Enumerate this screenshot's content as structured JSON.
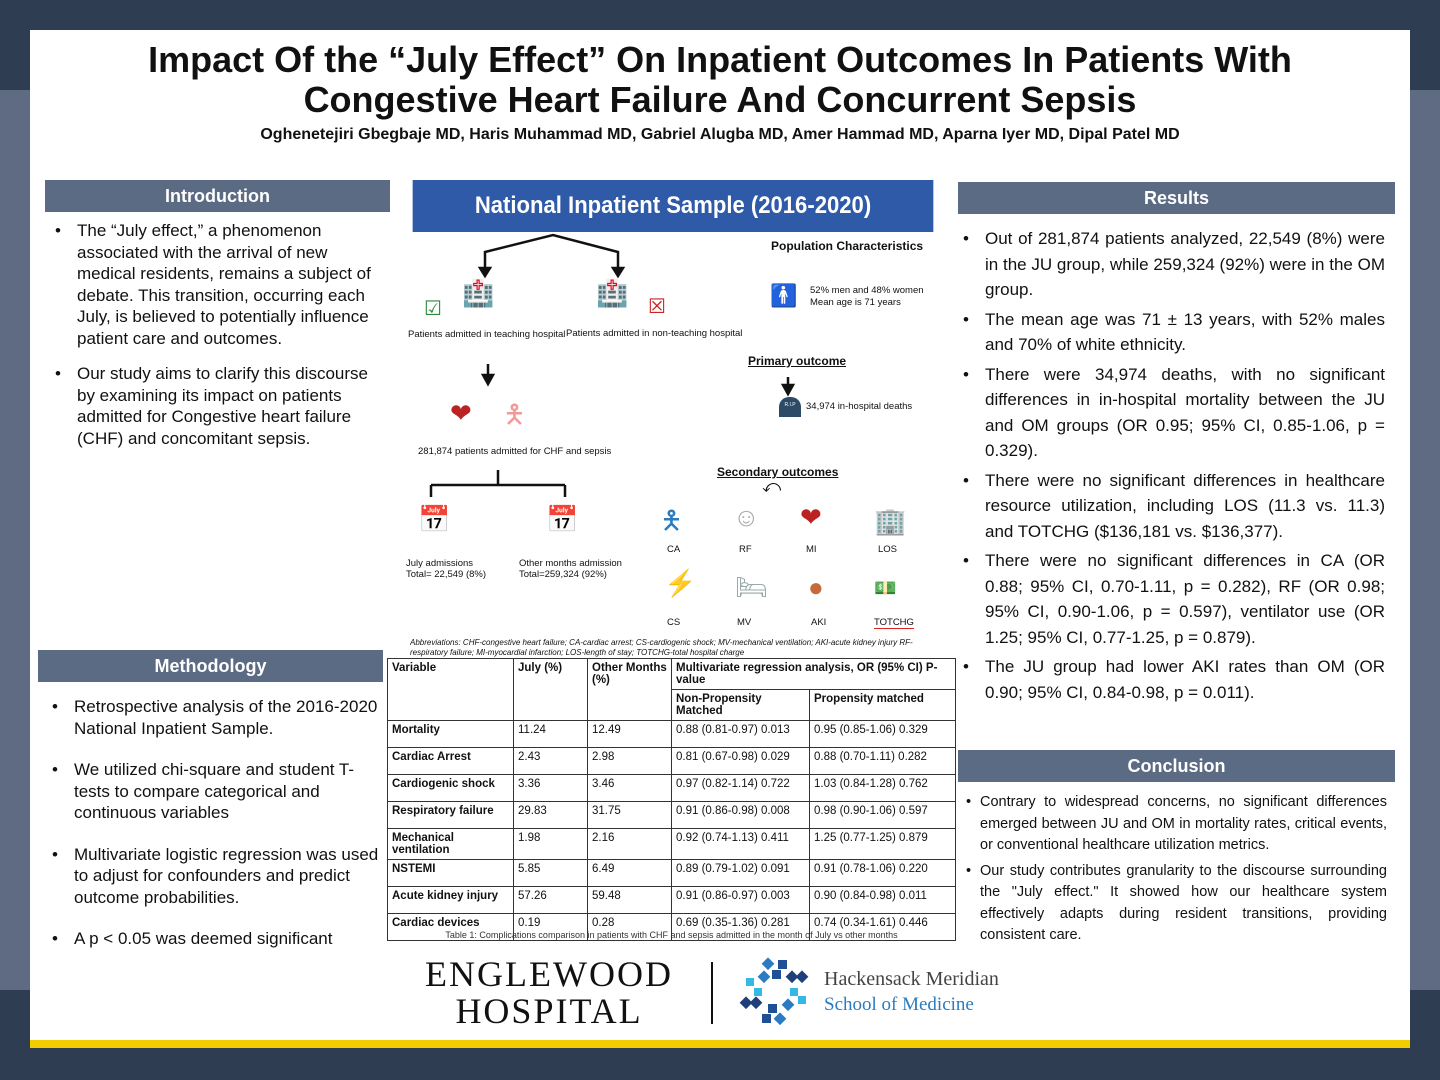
{
  "title": "Impact Of the “July Effect” On Inpatient Outcomes In Patients With Congestive Heart Failure And Concurrent Sepsis",
  "authors": "Oghenetejiri Gbegbaje MD, Haris Muhammad MD, Gabriel Alugba MD, Amer Hammad MD, Aparna Iyer MD, Dipal Patel MD",
  "introduction": {
    "heading": "Introduction",
    "bullets": [
      "The “July effect,” a phenomenon associated with the arrival of new medical residents, remains a subject of debate. This transition, occurring each July, is believed to potentially influence patient care and outcomes.",
      "Our study aims to clarify this discourse by examining its impact on patients admitted for Congestive heart failure (CHF) and concomitant sepsis."
    ]
  },
  "methodology": {
    "heading": "Methodology",
    "bullets": [
      "Retrospective analysis of the 2016-2020 National Inpatient Sample.",
      "We utilized chi-square and student T-tests to compare categorical and continuous variables",
      "Multivariate logistic regression was used to adjust for confounders and predict outcome probabilities.",
      "A p < 0.05 was deemed significant"
    ]
  },
  "results": {
    "heading": "Results",
    "bullets": [
      "Out of 281,874 patients analyzed, 22,549 (8%) were in the JU group, while 259,324 (92%) were in the OM group.",
      "The mean age was 71 ± 13 years, with 52% males and 70% of white ethnicity.",
      "There were 34,974 deaths, with no significant differences in in-hospital mortality between the JU and OM groups (OR 0.95; 95% CI, 0.85-1.06, p = 0.329).",
      "There were no significant differences in healthcare resource utilization, including LOS (11.3 vs. 11.3) and TOTCHG ($136,181 vs. $136,377).",
      "There were no significant differences in CA (OR 0.88; 95% CI, 0.70-1.11, p = 0.282), RF (OR 0.98; 95% CI, 0.90-1.06, p = 0.597), ventilator use (OR 1.25; 95% CI, 0.77-1.25, p = 0.879).",
      "The JU group had lower AKI rates than OM (OR 0.90; 95% CI, 0.84-0.98, p = 0.011)."
    ]
  },
  "conclusion": {
    "heading": "Conclusion",
    "bullets": [
      "Contrary to widespread concerns, no significant differences emerged between JU and OM in mortality rates, critical events, or conventional healthcare utilization metrics.",
      "Our study contributes granularity to the discourse surrounding the \"July effect.\" It showed how our healthcare system effectively adapts during resident transitions, providing consistent care."
    ]
  },
  "diagram": {
    "banner": "National Inpatient Sample (2016-2020)",
    "teaching": "Patients admitted in teaching hospital",
    "non_teaching": "Patients admitted in non-teaching hospital",
    "patients": "281,874 patients admitted for CHF and sepsis",
    "july": "July admissions",
    "july_total": "Total= 22,549 (8%)",
    "other": "Other months admission",
    "other_total": "Total=259,324 (92%)",
    "pop_heading": "Population Characteristics",
    "pop_line1": "52% men and 48% women",
    "pop_line2": "Mean age is 71 years",
    "primary_heading": "Primary outcome",
    "deaths": "34,974 in-hospital deaths",
    "rip": "R.I.P",
    "secondary_heading": "Secondary outcomes",
    "outcomes": [
      "CA",
      "RF",
      "MI",
      "LOS",
      "CS",
      "MV",
      "AKI",
      "TOTCHG"
    ],
    "abbreviations": "Abbreviations: CHF-congestive heart failure; CA-cardiac arrest; CS-cardiogenic shock; MV-mechanical ventilation; AKI-acute kidney injury RF-respiratory failure; MI-myocardial infarction; LOS-length of stay; TOTCHG-total hospital charge"
  },
  "table": {
    "headers": [
      "Variable",
      "July   (%)",
      "Other Months (%)",
      "Multivariate regression analysis, OR (95% CI) P-value",
      "Non-Propensity Matched",
      "Propensity matched"
    ],
    "rows": [
      [
        "Mortality",
        "11.24",
        "12.49",
        "0.88  (0.81-0.97) 0.013",
        "0.95 (0.85-1.06) 0.329"
      ],
      [
        "Cardiac Arrest",
        "2.43",
        "2.98",
        "0.81 (0.67-0.98) 0.029",
        "0.88 (0.70-1.11) 0.282"
      ],
      [
        "Cardiogenic shock",
        "3.36",
        "3.46",
        "0.97 (0.82-1.14) 0.722",
        "1.03 (0.84-1.28) 0.762"
      ],
      [
        "Respiratory failure",
        "29.83",
        "31.75",
        "0.91 (0.86-0.98) 0.008",
        "0.98 (0.90-1.06) 0.597"
      ],
      [
        "Mechanical ventilation",
        "1.98",
        "2.16",
        "0.92 (0.74-1.13) 0.411",
        "1.25 (0.77-1.25) 0.879"
      ],
      [
        "NSTEMI",
        "5.85",
        "6.49",
        "0.89 (0.79-1.02) 0.091",
        "0.91 (0.78-1.06) 0.220"
      ],
      [
        "Acute kidney injury",
        "57.26",
        "59.48",
        "0.91 (0.86-0.97) 0.003",
        "0.90 (0.84-0.98) 0.011"
      ],
      [
        "Cardiac devices",
        "0.19",
        "0.28",
        "0.69 (0.35-1.36) 0.281",
        "0.74 (0.34-1.61) 0.446"
      ]
    ],
    "caption": "Table 1: Complications comparison in patients with CHF and sepsis admitted in the month of July vs other months"
  },
  "logos": {
    "englewood_1": "ENGLEWOOD",
    "englewood_2": "HOSPITAL",
    "hm_1": "Hackensack Meridian",
    "hm_2": "School of Medicine"
  },
  "colors": {
    "header": "#5c6b84",
    "banner": "#2e5aa8",
    "accent": "#f2cd00"
  }
}
